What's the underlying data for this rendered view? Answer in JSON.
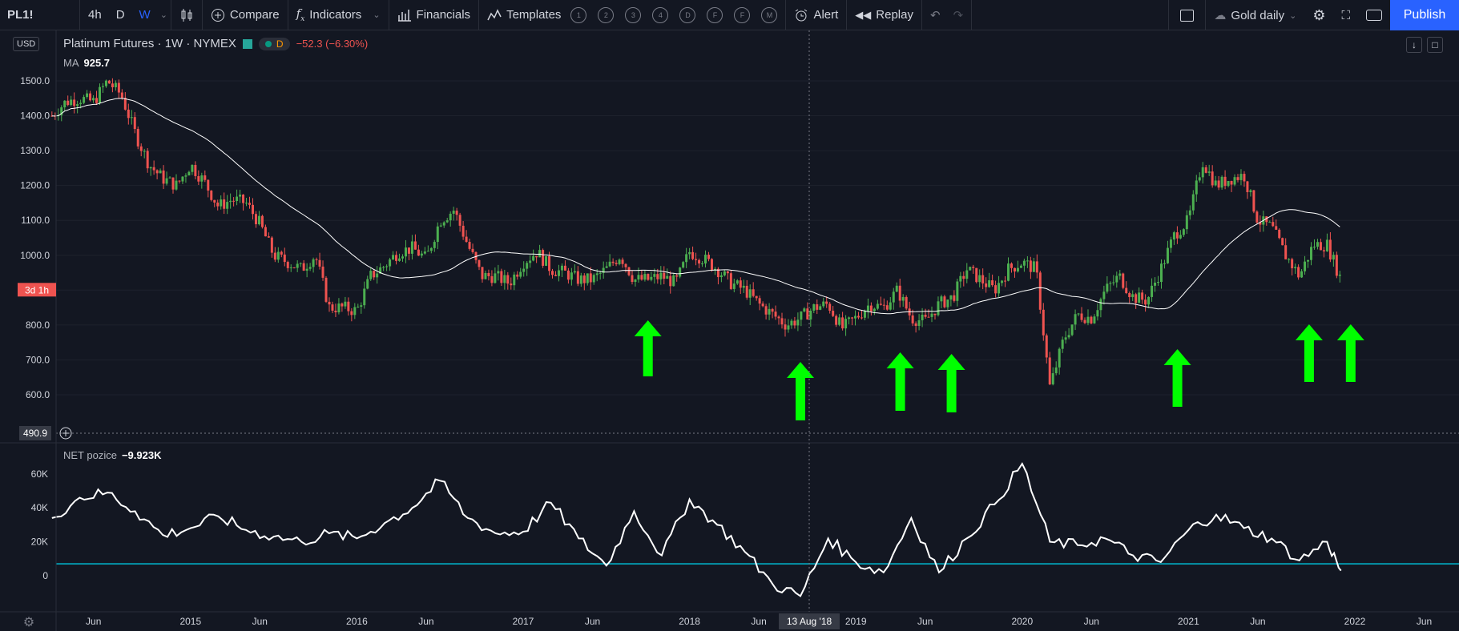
{
  "toolbar": {
    "symbol": "PL1!",
    "intervals": [
      "4h",
      "D",
      "W"
    ],
    "active_interval": "W",
    "compare_label": "Compare",
    "indicators_label": "Indicators",
    "financials_label": "Financials",
    "templates_label": "Templates",
    "template_slots": [
      "1",
      "2",
      "3",
      "4",
      "D",
      "F",
      "F",
      "M"
    ],
    "alert_label": "Alert",
    "replay_label": "Replay",
    "layout_name": "Gold daily",
    "publish_label": "Publish"
  },
  "legend": {
    "currency": "USD",
    "title": "Platinum Futures · 1W · NYMEX",
    "session_badge": "D",
    "change": "−52.3 (−6.30%)",
    "ma_label": "MA",
    "ma_value": "925.7",
    "net_label": "NET pozice",
    "net_value": "−9.923K"
  },
  "price_axis": {
    "labels": [
      "1500.0",
      "1400.0",
      "1300.0",
      "1200.0",
      "1100.0",
      "1000.0",
      "900.0",
      "800.0",
      "700.0",
      "600.0"
    ],
    "countdown": "3d 1h",
    "cursor_price": "490.9"
  },
  "net_axis": {
    "labels": [
      "60K",
      "40K",
      "20K",
      "0"
    ]
  },
  "time_axis": {
    "labels": [
      "Jun",
      "2015",
      "Jun",
      "2016",
      "Jun",
      "2017",
      "Jun",
      "2018",
      "Jun",
      "2019",
      "Jun",
      "2020",
      "Jun",
      "2021",
      "Jun",
      "2022",
      "Jun"
    ],
    "cursor_date": "13 Aug '18"
  },
  "colors": {
    "up": "#4caf50",
    "down": "#ef5350",
    "ma": "#ffffff",
    "net": "#ffffff",
    "zero_line": "#00bcd4",
    "arrow": "#00ff00",
    "accent": "#2962ff"
  },
  "chart_data": [
    {
      "type": "candlestick",
      "title": "Platinum Futures · 1W · NYMEX",
      "x_range": [
        "2014-03",
        "2022-06"
      ],
      "ylim": [
        490.9,
        1560
      ],
      "close_series": [
        [
          "2014-03",
          1400
        ],
        [
          "2014-04",
          1440
        ],
        [
          "2014-05",
          1450
        ],
        [
          "2014-06",
          1440
        ],
        [
          "2014-07",
          1500
        ],
        [
          "2014-08",
          1460
        ],
        [
          "2014-09",
          1350
        ],
        [
          "2014-10",
          1260
        ],
        [
          "2014-11",
          1220
        ],
        [
          "2014-12",
          1200
        ],
        [
          "2015-01",
          1260
        ],
        [
          "2015-02",
          1210
        ],
        [
          "2015-03",
          1140
        ],
        [
          "2015-04",
          1160
        ],
        [
          "2015-05",
          1150
        ],
        [
          "2015-06",
          1090
        ],
        [
          "2015-07",
          1000
        ],
        [
          "2015-08",
          980
        ],
        [
          "2015-09",
          960
        ],
        [
          "2015-10",
          1000
        ],
        [
          "2015-11",
          850
        ],
        [
          "2015-12",
          850
        ],
        [
          "2016-01",
          840
        ],
        [
          "2016-02",
          940
        ],
        [
          "2016-03",
          970
        ],
        [
          "2016-04",
          1010
        ],
        [
          "2016-05",
          1020
        ],
        [
          "2016-06",
          990
        ],
        [
          "2016-07",
          1100
        ],
        [
          "2016-08",
          1130
        ],
        [
          "2016-09",
          1030
        ],
        [
          "2016-10",
          940
        ],
        [
          "2016-11",
          940
        ],
        [
          "2016-12",
          920
        ],
        [
          "2017-01",
          980
        ],
        [
          "2017-02",
          1010
        ],
        [
          "2017-03",
          960
        ],
        [
          "2017-04",
          950
        ],
        [
          "2017-05",
          930
        ],
        [
          "2017-06",
          930
        ],
        [
          "2017-07",
          960
        ],
        [
          "2017-08",
          1000
        ],
        [
          "2017-09",
          930
        ],
        [
          "2017-10",
          930
        ],
        [
          "2017-11",
          940
        ],
        [
          "2017-12",
          920
        ],
        [
          "2018-01",
          1010
        ],
        [
          "2018-02",
          990
        ],
        [
          "2018-03",
          960
        ],
        [
          "2018-04",
          920
        ],
        [
          "2018-05",
          900
        ],
        [
          "2018-06",
          860
        ],
        [
          "2018-07",
          830
        ],
        [
          "2018-08",
          800
        ],
        [
          "2018-09",
          820
        ],
        [
          "2018-10",
          850
        ],
        [
          "2018-11",
          860
        ],
        [
          "2018-12",
          790
        ],
        [
          "2019-01",
          820
        ],
        [
          "2019-02",
          860
        ],
        [
          "2019-03",
          850
        ],
        [
          "2019-04",
          900
        ],
        [
          "2019-05",
          820
        ],
        [
          "2019-06",
          810
        ],
        [
          "2019-07",
          860
        ],
        [
          "2019-08",
          880
        ],
        [
          "2019-09",
          960
        ],
        [
          "2019-10",
          930
        ],
        [
          "2019-11",
          900
        ],
        [
          "2019-12",
          960
        ],
        [
          "2020-01",
          980
        ],
        [
          "2020-02",
          960
        ],
        [
          "2020-03",
          620
        ],
        [
          "2020-04",
          760
        ],
        [
          "2020-05",
          830
        ],
        [
          "2020-06",
          820
        ],
        [
          "2020-07",
          900
        ],
        [
          "2020-08",
          940
        ],
        [
          "2020-09",
          880
        ],
        [
          "2020-10",
          870
        ],
        [
          "2020-11",
          960
        ],
        [
          "2020-12",
          1060
        ],
        [
          "2021-01",
          1100
        ],
        [
          "2021-02",
          1270
        ],
        [
          "2021-03",
          1200
        ],
        [
          "2021-04",
          1220
        ],
        [
          "2021-05",
          1230
        ],
        [
          "2021-06",
          1100
        ],
        [
          "2021-07",
          1080
        ],
        [
          "2021-08",
          1000
        ],
        [
          "2021-09",
          940
        ],
        [
          "2021-10",
          1030
        ],
        [
          "2021-11",
          1030
        ],
        [
          "2021-12",
          930
        ]
      ],
      "ma_current": 925.7
    },
    {
      "type": "line",
      "title": "NET pozice",
      "ylim": [
        -10,
        72
      ],
      "zero_line_value": 7,
      "series": [
        {
          "name": "NET pozice",
          "values_k": [
            [
              "2014-03",
              34
            ],
            [
              "2014-05",
              46
            ],
            [
              "2014-07",
              49
            ],
            [
              "2014-09",
              38
            ],
            [
              "2014-11",
              24
            ],
            [
              "2015-01",
              28
            ],
            [
              "2015-03",
              35
            ],
            [
              "2015-05",
              27
            ],
            [
              "2015-07",
              23
            ],
            [
              "2015-09",
              20
            ],
            [
              "2015-11",
              25
            ],
            [
              "2016-01",
              22
            ],
            [
              "2016-03",
              31
            ],
            [
              "2016-05",
              40
            ],
            [
              "2016-07",
              56
            ],
            [
              "2016-09",
              34
            ],
            [
              "2016-11",
              25
            ],
            [
              "2017-01",
              26
            ],
            [
              "2017-03",
              43
            ],
            [
              "2017-05",
              22
            ],
            [
              "2017-07",
              6
            ],
            [
              "2017-09",
              38
            ],
            [
              "2017-11",
              12
            ],
            [
              "2018-01",
              45
            ],
            [
              "2018-03",
              30
            ],
            [
              "2018-05",
              14
            ],
            [
              "2018-07",
              -5
            ],
            [
              "2018-09",
              -12
            ],
            [
              "2018-11",
              22
            ],
            [
              "2019-01",
              8
            ],
            [
              "2019-03",
              2
            ],
            [
              "2019-05",
              34
            ],
            [
              "2019-07",
              2
            ],
            [
              "2019-09",
              22
            ],
            [
              "2019-11",
              42
            ],
            [
              "2020-01",
              66
            ],
            [
              "2020-03",
              20
            ],
            [
              "2020-05",
              18
            ],
            [
              "2020-07",
              22
            ],
            [
              "2020-09",
              12
            ],
            [
              "2020-11",
              8
            ],
            [
              "2021-01",
              27
            ],
            [
              "2021-03",
              36
            ],
            [
              "2021-05",
              28
            ],
            [
              "2021-07",
              22
            ],
            [
              "2021-09",
              9
            ],
            [
              "2021-11",
              20
            ],
            [
              "2021-12",
              3
            ]
          ]
        }
      ]
    }
  ]
}
